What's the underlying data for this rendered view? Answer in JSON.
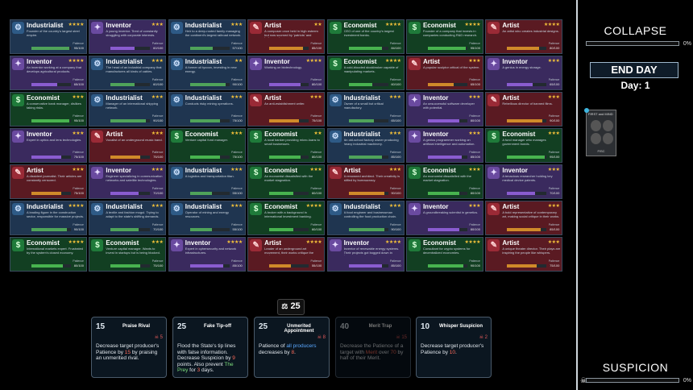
{
  "top_hint": "",
  "grid": {
    "patience_label": "Patience",
    "cards": [
      {
        "class": "Industrialist",
        "stars": "★★★★",
        "desc": "Founder of the country's largest steel empire.",
        "value": "95/100",
        "pct": 0.95
      },
      {
        "class": "Inventor",
        "stars": "★★★",
        "desc": "A young inventor. Tired of constantly struggling with corporate interests.",
        "value": "60/100",
        "pct": 0.6
      },
      {
        "class": "Industrialist",
        "stars": "★★★",
        "desc": "Heir to a deep-rooted family managing the continent's largest railroad network.",
        "value": "57/100",
        "pct": 0.57
      },
      {
        "class": "Artist",
        "stars": "★★",
        "desc": "A composer once held in high esteem but now scorned by 'patriots' and 'reformers'.",
        "value": "85/100",
        "pct": 0.85
      },
      {
        "class": "Economist",
        "stars": "★★★★",
        "desc": "CEO of one of the country's largest investment banks.",
        "value": "84/100",
        "pct": 0.84
      },
      {
        "class": "Economist",
        "stars": "★★★★",
        "desc": "Founder of a company that invests in companies conducting R&D research.",
        "value": "95/100",
        "pct": 0.95
      },
      {
        "class": "Artist",
        "stars": "★★★★",
        "desc": "An artist who creates industrial designs.",
        "value": "80/100",
        "pct": 0.8
      },
      {
        "class": "Inventor",
        "stars": "★★★★",
        "desc": "An inventor working at a company that develops agricultural products.",
        "value": "65/100",
        "pct": 0.65
      },
      {
        "class": "Industrialist",
        "stars": "★★★",
        "desc": "The head of an industrial company that manufactures all kinds of cables.",
        "value": "60/100",
        "pct": 0.6
      },
      {
        "class": "Industrialist",
        "stars": "★★",
        "desc": "A former oil tycoon, investing in new energy.",
        "value": "90/100",
        "pct": 0.9
      },
      {
        "class": "Inventor",
        "stars": "★★★★",
        "desc": "Working on biotechnology.",
        "value": "80/100",
        "pct": 0.8
      },
      {
        "class": "Economist",
        "stars": "★★★★",
        "desc": "A cold-blooded stockbroker capable of manipulating markets.",
        "value": "60/100",
        "pct": 0.6
      },
      {
        "class": "Artist",
        "stars": "★★★",
        "desc": "A popular sculptor critical of the system.",
        "value": "65/100",
        "pct": 0.65
      },
      {
        "class": "Inventor",
        "stars": "★★★",
        "desc": "A genius in energy storage.",
        "value": "65/100",
        "pct": 0.65
      },
      {
        "class": "Economist",
        "stars": "★★★",
        "desc": "A conservative bank manager, dislikes taking risks.",
        "value": "95/100",
        "pct": 0.95
      },
      {
        "class": "Industrialist",
        "stars": "★★★",
        "desc": "Manager of an international shipping network.",
        "value": "90/100",
        "pct": 0.9
      },
      {
        "class": "Industrialist",
        "stars": "★★★",
        "desc": "Conducts risky mining operations.",
        "value": "75/100",
        "pct": 0.75
      },
      {
        "class": "Artist",
        "stars": "★★★",
        "desc": "An anti-establishment writer.",
        "value": "75/100",
        "pct": 0.75
      },
      {
        "class": "Industrialist",
        "stars": "★★★",
        "desc": "Owner of a small but critical manufactory.",
        "value": "65/100",
        "pct": 0.65
      },
      {
        "class": "Inventor",
        "stars": "★★★",
        "desc": "An unsuccessful software developer with potential.",
        "value": "80/100",
        "pct": 0.8
      },
      {
        "class": "Artist",
        "stars": "★★★",
        "desc": "Rebellious director of banned films.",
        "value": "90/100",
        "pct": 0.9
      },
      {
        "class": "Inventor",
        "stars": "★★★",
        "desc": "Expert in optics and lens technologies.",
        "value": "75/100",
        "pct": 0.75
      },
      {
        "class": "Artist",
        "stars": "★★★",
        "desc": "Vocalist of an underground music band.",
        "value": "75/100",
        "pct": 0.75
      },
      {
        "class": "Economist",
        "stars": "★★★",
        "desc": "Venture capital fund manager.",
        "value": "75/100",
        "pct": 0.75
      },
      {
        "class": "Economist",
        "stars": "★★",
        "desc": "A local banker providing micro-loans to small businesses.",
        "value": "80/100",
        "pct": 0.8
      },
      {
        "class": "Industrialist",
        "stars": "★★★",
        "desc": "An old-school factory owner producing heavy industrial machinery.",
        "value": "85/100",
        "pct": 0.85
      },
      {
        "class": "Inventor",
        "stars": "★★★",
        "desc": "A genius programmer working on artificial intelligence and automation.",
        "value": "85/100",
        "pct": 0.85
      },
      {
        "class": "Economist",
        "stars": "★★★",
        "desc": "A fund manager who manages government bonds.",
        "value": "95/100",
        "pct": 0.95
      },
      {
        "class": "Artist",
        "stars": "★★★",
        "desc": "A dissident journalist. Their articles are constantly censored.",
        "value": "75/100",
        "pct": 0.75
      },
      {
        "class": "Inventor",
        "stars": "★★★",
        "desc": "Engineer specializing in communication networks and satellite technologies.",
        "value": "70/100",
        "pct": 0.7
      },
      {
        "class": "Industrialist",
        "stars": "★★★",
        "desc": "A logistics and transportation titan.",
        "value": "55/100",
        "pct": 0.55
      },
      {
        "class": "Economist",
        "stars": "★★★",
        "desc": "An economist dissatisfied with the market stagnation.",
        "value": "60/100",
        "pct": 0.6
      },
      {
        "class": "Artist",
        "stars": "★★★",
        "desc": "A renowned architect. Their creativity is stifled by bureaucracy.",
        "value": "90/100",
        "pct": 0.9
      },
      {
        "class": "Economist",
        "stars": "★★★",
        "desc": "An economist dissatisfied with the market stagnation.",
        "value": "80/100",
        "pct": 0.8
      },
      {
        "class": "Inventor",
        "stars": "★★★",
        "desc": "A tenacious researcher holding key medical device patents.",
        "value": "70/100",
        "pct": 0.7
      },
      {
        "class": "Industrialist",
        "stars": "★★★★",
        "desc": "A leading figure in the construction sector, responsible for massive projects.",
        "value": "90/100",
        "pct": 0.9
      },
      {
        "class": "Industrialist",
        "stars": "★★★",
        "desc": "A textile and fashion mogul. Trying to adapt to the state's shifting demands.",
        "value": "70/100",
        "pct": 0.7
      },
      {
        "class": "Industrialist",
        "stars": "★★★",
        "desc": "Operator of mining and energy resources.",
        "value": "55/100",
        "pct": 0.55
      },
      {
        "class": "Economist",
        "stars": "★★★★",
        "desc": "A broker with a background in international investment banking.",
        "value": "60/100",
        "pct": 0.6
      },
      {
        "class": "Industrialist",
        "stars": "★★★",
        "desc": "A food engineer and businessman controlling the food production chain.",
        "value": "90/100",
        "pct": 0.9
      },
      {
        "class": "Inventor",
        "stars": "★★★",
        "desc": "A groundbreaking scientist in genetics.",
        "value": "80/100",
        "pct": 0.8
      },
      {
        "class": "Artist",
        "stars": "★★★",
        "desc": "A bold representative of contemporary art, making social critique in their works.",
        "value": "85/100",
        "pct": 0.85
      },
      {
        "class": "Economist",
        "stars": "★★★★",
        "desc": "International markets expert. Frustrated by the system's closed economy.",
        "value": "80/100",
        "pct": 0.8
      },
      {
        "class": "Economist",
        "stars": "★★★",
        "desc": "Venture capital manager. Wants to invest in startups but is being blocked.",
        "value": "75/100",
        "pct": 0.75
      },
      {
        "class": "Inventor",
        "stars": "★★★★",
        "desc": "Expert in cybersecurity and network infrastructures.",
        "value": "85/100",
        "pct": 0.85
      },
      {
        "class": "Artist",
        "stars": "★★★★",
        "desc": "Leader of an underground art movement, their works critique the system.",
        "value": "55/100",
        "pct": 0.55
      },
      {
        "class": "Inventor",
        "stars": "★★★★",
        "desc": "Inventor of renewable energy systems. Their projects got bogged down in bureaucracy.",
        "value": "85/100",
        "pct": 0.85
      },
      {
        "class": "Economist",
        "stars": "★★★★",
        "desc": "Consultant for crypto systems for decentralized economies.",
        "value": "90/100",
        "pct": 0.9
      },
      {
        "class": "Artist",
        "stars": "★★★",
        "desc": "A unique theater director. Their plays are inspiring the people like whispers.",
        "value": "75/100",
        "pct": 0.75
      }
    ]
  },
  "side": {
    "collapse_label": "COLLAPSE",
    "collapse_value": "0%",
    "collapse_pct": 0.0,
    "end_day_label": "END DAY",
    "day_label": "Day:",
    "day_value": "1",
    "mini_card_title": "FIRST and MIND",
    "mini_card_bottom": "FISC",
    "suspicion_label": "SUSPICION",
    "suspicion_value": "0%",
    "suspicion_pct": 0.0
  },
  "budget": {
    "value": "25"
  },
  "hand": [
    {
      "cost": "15",
      "name": "Praise Rival",
      "risk": "5",
      "disabled": false,
      "desc": "Decrease target producer's Patience by 15 by praising an unmerited rival."
    },
    {
      "cost": "25",
      "name": "Fake Tip-off",
      "risk": "",
      "desc": "Flood the State's tip lines with false information. Decrease Suspicion by 9 points. Also prevent The Prey for 3 days.",
      "disabled": false
    },
    {
      "cost": "25",
      "name": "Unmerited Appointment",
      "risk": "8",
      "disabled": false,
      "desc": "Patience of all producers decreases by 8."
    },
    {
      "cost": "40",
      "name": "Merit Trap",
      "risk": "15",
      "disabled": true,
      "desc": "Decrease the Patience of a target with Merit over 70 by half of their Merit."
    },
    {
      "cost": "10",
      "name": "Whisper Suspicion",
      "risk": "2",
      "disabled": false,
      "desc": "Decrease target producer's Patience by 10."
    }
  ],
  "colors": {
    "industrialist": "#1f3550",
    "inventor": "#3a2a5e",
    "artist": "#5a1a22",
    "economist": "#123f22",
    "star": "#f3c13a"
  },
  "icons": {
    "industrialist": "gear-icon",
    "inventor": "lightbulb-icon",
    "artist": "brush-icon",
    "economist": "dollar-icon"
  }
}
